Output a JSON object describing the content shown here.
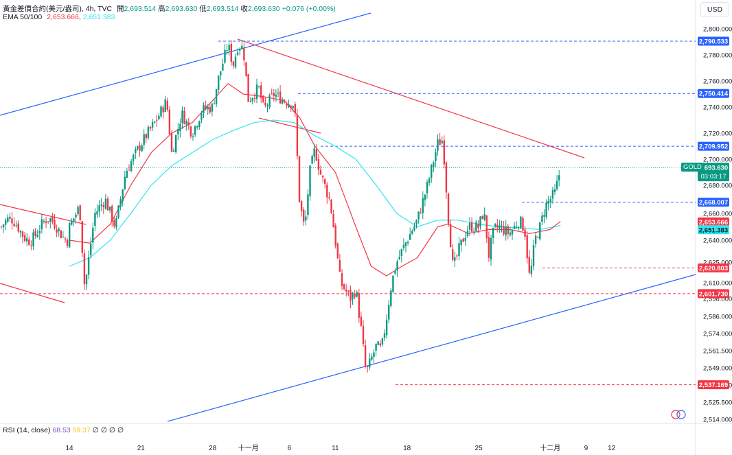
{
  "header": {
    "symbol_line": "黃金差價合約(美元/盎司), 4h, TVC",
    "ohlc": [
      {
        "label": "開",
        "value": "2,693.514"
      },
      {
        "label": "高",
        "value": "2,693.630"
      },
      {
        "label": "低",
        "value": "2,693.514"
      },
      {
        "label": "收",
        "value": "2,693.630"
      }
    ],
    "change": "+0.076 (+0.00%)",
    "ema_label": "EMA 50/100",
    "ema50_value": "2,653.666",
    "ema100_value": "2,651.383",
    "currency_button": "USD"
  },
  "rsi": {
    "label": "RSI (14, close)",
    "value1": "68.53",
    "value2": "59.37",
    "extra": "∅ ∅ ∅ ∅"
  },
  "colors": {
    "up": "#089981",
    "down": "#f23645",
    "ema50": "#f23645",
    "ema100": "#2ee6f0",
    "trend_blue": "#2962ff",
    "trend_red": "#f23645",
    "level_blue": "#2962ff",
    "level_red": "#f23645"
  },
  "chart_data": {
    "type": "candlestick",
    "symbol": "GOLD",
    "timeframe": "4h",
    "y_ticks": [
      "2,800.000",
      "2,780.000",
      "2,760.000",
      "2,740.000",
      "2,720.000",
      "2,700.000",
      "2,680.000",
      "2,660.000",
      "2,640.000",
      "2,625.000",
      "2,610.000",
      "2,598.000",
      "2,586.000",
      "2,574.000",
      "2,561.500",
      "2,549.000",
      "2,537.000",
      "2,525.500",
      "2,514.000"
    ],
    "x_ticks": [
      "14",
      "21",
      "28",
      "十一月",
      "6",
      "11",
      "18",
      "25",
      "十二月",
      "9",
      "12"
    ],
    "price_levels": [
      {
        "value": "2,790.533",
        "color": "blue"
      },
      {
        "value": "2,750.414",
        "color": "blue"
      },
      {
        "value": "2,709.952",
        "color": "blue"
      },
      {
        "value": "2,668.007",
        "color": "blue"
      },
      {
        "value": "2,620.803",
        "color": "red"
      },
      {
        "value": "2,601.730",
        "color": "red"
      },
      {
        "value": "2,537.169",
        "color": "red"
      }
    ],
    "current": {
      "symbol": "GOLD",
      "price": "2,693.630",
      "countdown": "03:03:17"
    },
    "ema50_last": "2,653.666",
    "ema100_last": "2,651.383",
    "close_path": [
      [
        14.0,
        2650
      ],
      [
        15.0,
        2665
      ],
      [
        15.5,
        2606
      ],
      [
        16.5,
        2660
      ],
      [
        17.5,
        2670
      ],
      [
        18.5,
        2650
      ],
      [
        19.5,
        2690
      ],
      [
        20.5,
        2705
      ],
      [
        21.5,
        2718
      ],
      [
        22.5,
        2730
      ],
      [
        23.5,
        2745
      ],
      [
        24.0,
        2705
      ],
      [
        25.0,
        2735
      ],
      [
        26.0,
        2720
      ],
      [
        27.0,
        2738
      ],
      [
        28.0,
        2740
      ],
      [
        28.5,
        2760
      ],
      [
        29.5,
        2788
      ],
      [
        30.0,
        2772
      ],
      [
        30.5,
        2788
      ],
      [
        31.0,
        2785
      ],
      [
        31.5,
        2745
      ],
      [
        32.5,
        2755
      ],
      [
        33.0,
        2738
      ],
      [
        34.0,
        2750
      ],
      [
        35.0,
        2745
      ],
      [
        36.0,
        2742
      ],
      [
        36.5,
        2668
      ],
      [
        37.0,
        2648
      ],
      [
        37.5,
        2690
      ],
      [
        38.0,
        2708
      ],
      [
        38.5,
        2690
      ],
      [
        39.5,
        2668
      ],
      [
        40.0,
        2640
      ],
      [
        40.5,
        2610
      ],
      [
        41.5,
        2598
      ],
      [
        42.0,
        2605
      ],
      [
        42.5,
        2578
      ],
      [
        43.0,
        2545
      ],
      [
        43.5,
        2555
      ],
      [
        44.0,
        2565
      ],
      [
        44.5,
        2562
      ],
      [
        45.0,
        2585
      ],
      [
        45.5,
        2610
      ],
      [
        46.0,
        2625
      ],
      [
        47.0,
        2640
      ],
      [
        48.0,
        2655
      ],
      [
        49.0,
        2680
      ],
      [
        50.0,
        2712
      ],
      [
        50.5,
        2715
      ],
      [
        51.0,
        2660
      ],
      [
        51.5,
        2620
      ],
      [
        52.0,
        2632
      ],
      [
        53.0,
        2650
      ],
      [
        54.0,
        2650
      ],
      [
        54.5,
        2662
      ],
      [
        55.0,
        2630
      ],
      [
        55.5,
        2648
      ],
      [
        56.0,
        2650
      ],
      [
        57.0,
        2645
      ],
      [
        58.0,
        2655
      ],
      [
        58.5,
        2648
      ],
      [
        59.0,
        2612
      ],
      [
        59.5,
        2640
      ],
      [
        60.0,
        2650
      ],
      [
        60.5,
        2665
      ],
      [
        61.0,
        2670
      ],
      [
        61.5,
        2675
      ],
      [
        62.0,
        2693
      ]
    ],
    "ema50": [
      [
        14.0,
        2640
      ],
      [
        16.0,
        2638
      ],
      [
        18.0,
        2652
      ],
      [
        20.0,
        2680
      ],
      [
        22.0,
        2705
      ],
      [
        24.0,
        2720
      ],
      [
        26.0,
        2728
      ],
      [
        28.0,
        2745
      ],
      [
        29.5,
        2758
      ],
      [
        31.0,
        2750
      ],
      [
        33.0,
        2748
      ],
      [
        35.0,
        2745
      ],
      [
        36.5,
        2732
      ],
      [
        38.0,
        2710
      ],
      [
        40.0,
        2690
      ],
      [
        42.0,
        2650
      ],
      [
        43.5,
        2622
      ],
      [
        45.0,
        2615
      ],
      [
        46.5,
        2622
      ],
      [
        48.0,
        2628
      ],
      [
        50.0,
        2650
      ],
      [
        51.0,
        2652
      ],
      [
        53.0,
        2645
      ],
      [
        55.0,
        2648
      ],
      [
        57.0,
        2648
      ],
      [
        59.0,
        2645
      ],
      [
        61.0,
        2648
      ],
      [
        62.0,
        2654
      ]
    ],
    "ema100": [
      [
        14.0,
        2622
      ],
      [
        16.0,
        2628
      ],
      [
        18.0,
        2640
      ],
      [
        20.0,
        2660
      ],
      [
        22.0,
        2680
      ],
      [
        24.0,
        2695
      ],
      [
        26.0,
        2705
      ],
      [
        28.0,
        2715
      ],
      [
        30.0,
        2722
      ],
      [
        32.0,
        2728
      ],
      [
        34.0,
        2730
      ],
      [
        36.0,
        2728
      ],
      [
        38.0,
        2718
      ],
      [
        40.0,
        2710
      ],
      [
        42.0,
        2700
      ],
      [
        44.0,
        2680
      ],
      [
        46.0,
        2660
      ],
      [
        48.0,
        2650
      ],
      [
        50.0,
        2655
      ],
      [
        52.0,
        2655
      ],
      [
        54.0,
        2652
      ],
      [
        56.0,
        2650
      ],
      [
        58.0,
        2649
      ],
      [
        60.0,
        2648
      ],
      [
        62.0,
        2651
      ]
    ]
  }
}
